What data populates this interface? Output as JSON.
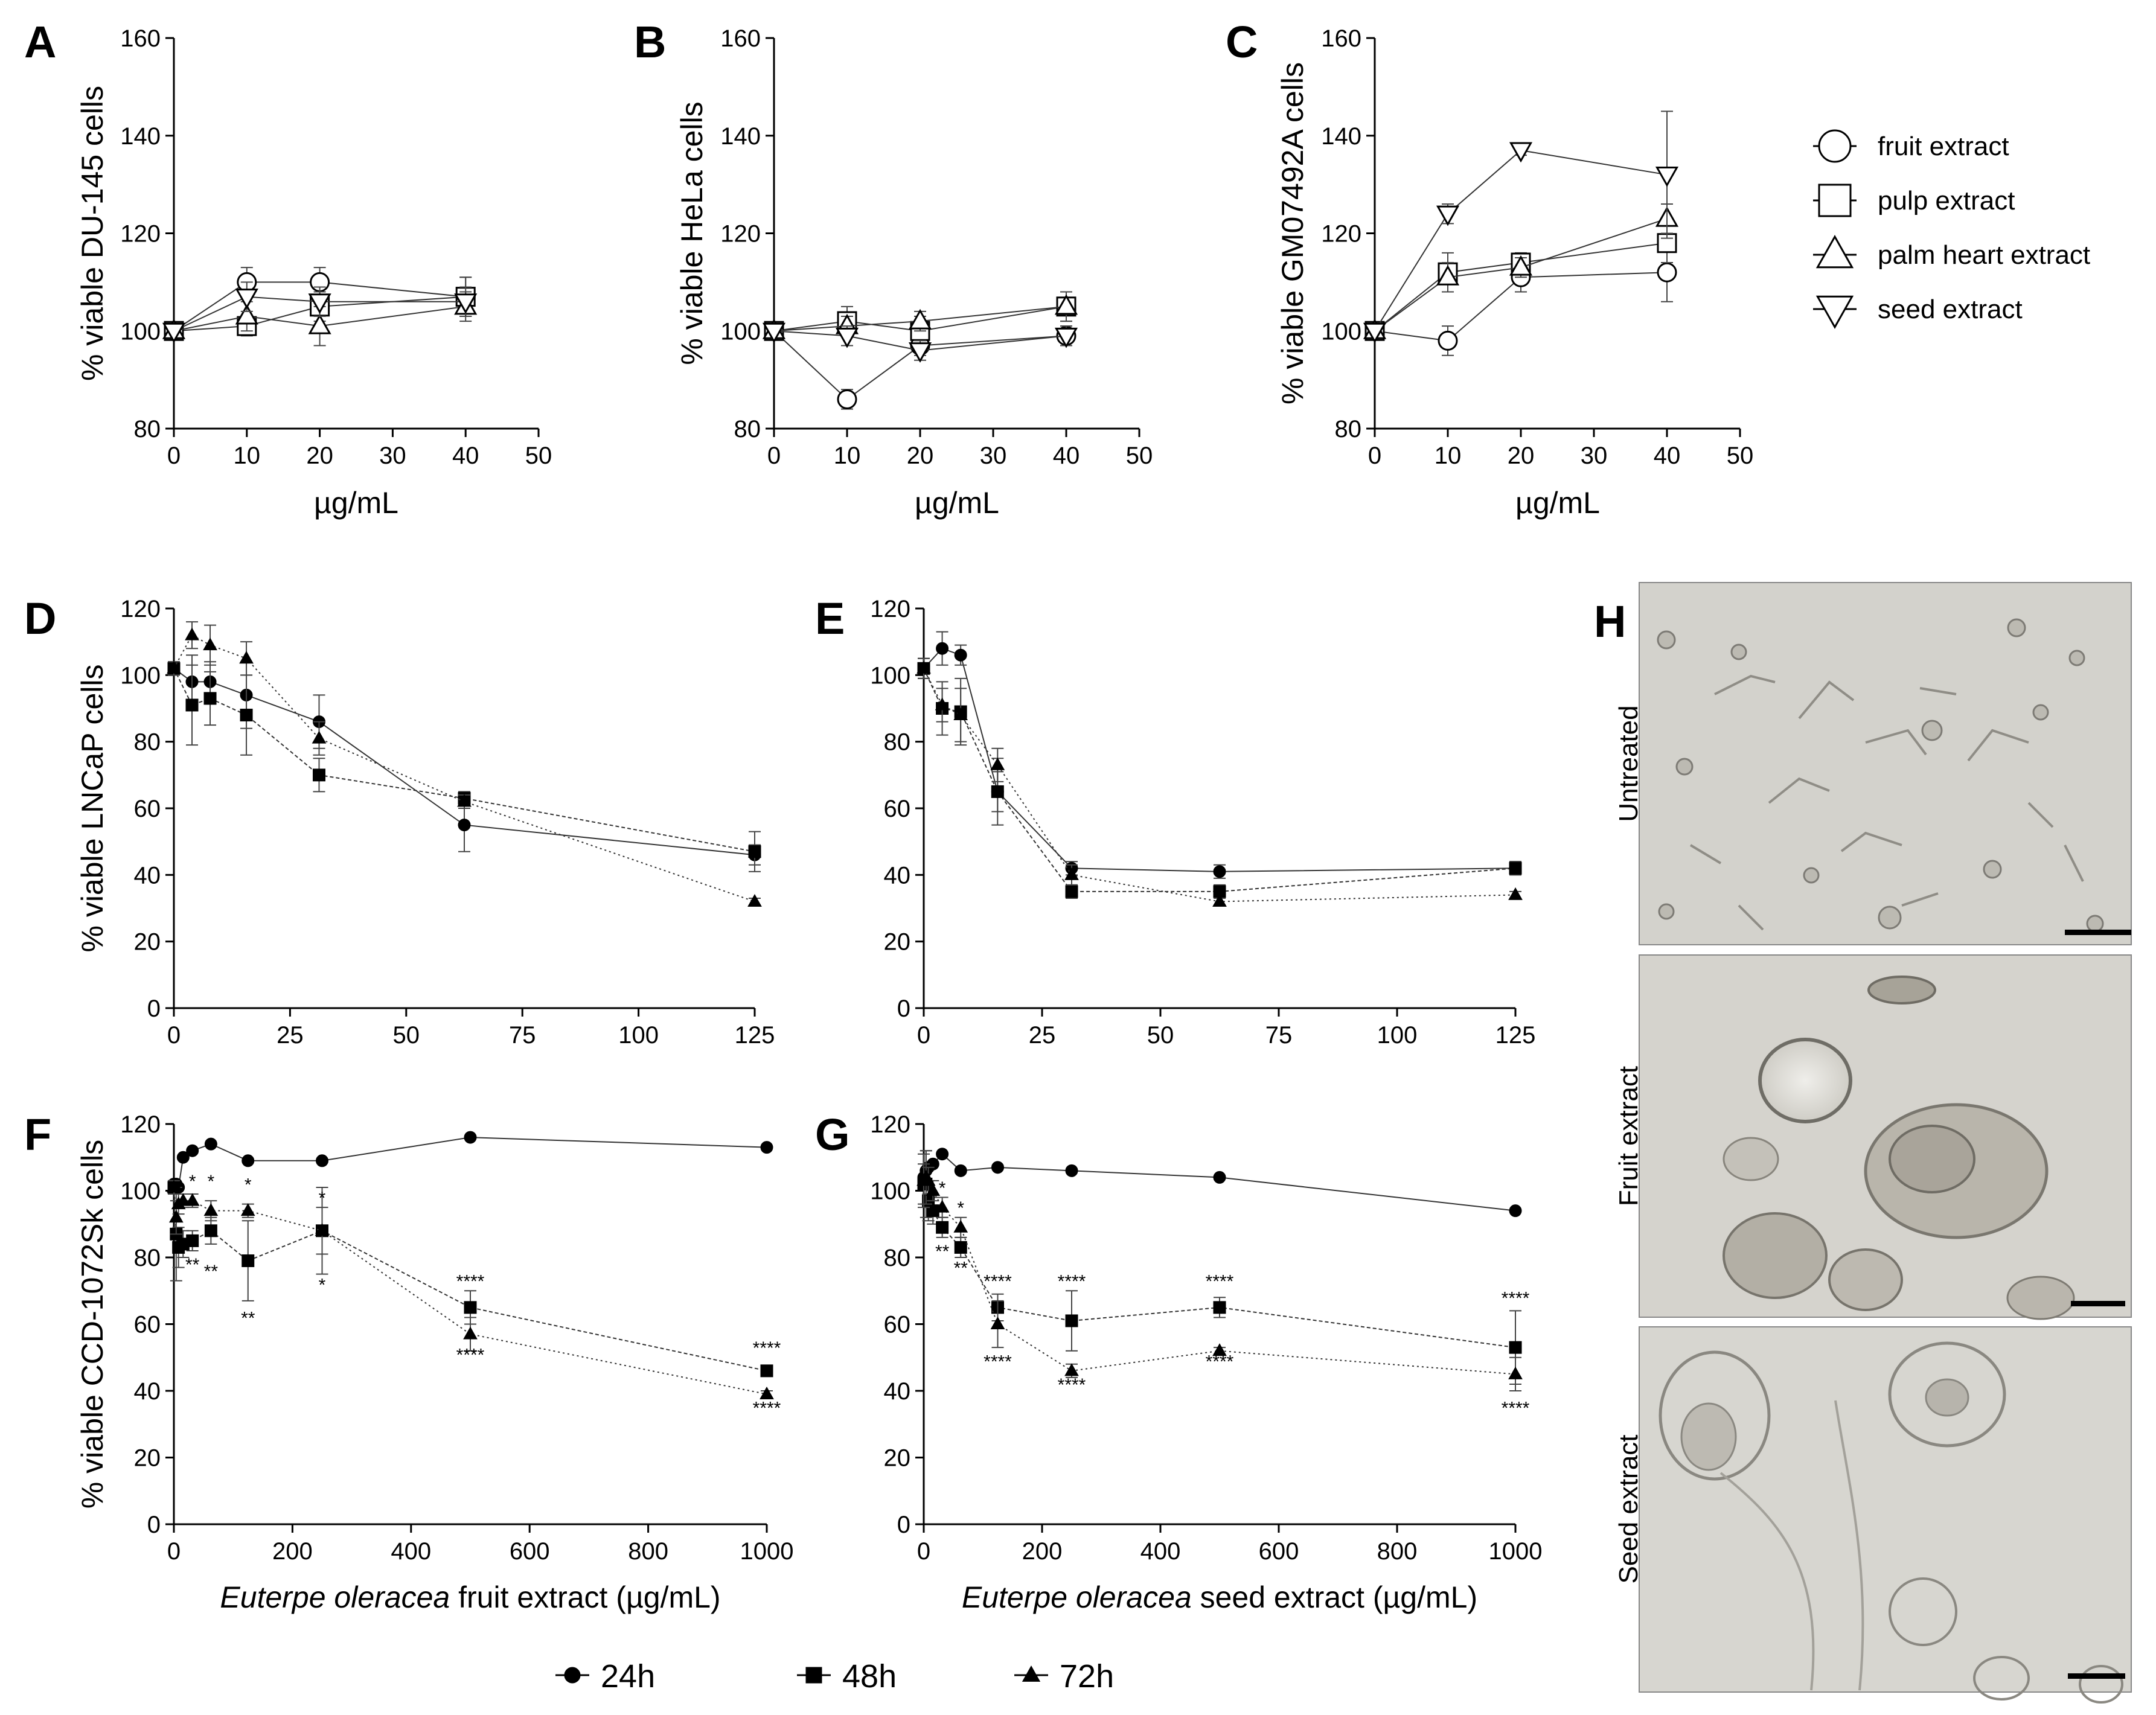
{
  "chart_data": [
    {
      "id": "A",
      "type": "line",
      "panel_label": "A",
      "ylabel": "% viable DU-145 cells",
      "xlabel": "µg/mL",
      "xlim": [
        0,
        50
      ],
      "ylim": [
        80,
        160
      ],
      "xticks": [
        0,
        10,
        20,
        30,
        40,
        50
      ],
      "yticks": [
        80,
        100,
        120,
        140,
        160
      ],
      "x": [
        0,
        10,
        20,
        40
      ],
      "series": [
        {
          "name": "fruit extract",
          "marker": "circle",
          "values": [
            100,
            110,
            110,
            107
          ],
          "err": [
            0,
            3,
            3,
            4
          ]
        },
        {
          "name": "pulp extract",
          "marker": "square",
          "values": [
            100,
            101,
            105,
            107
          ],
          "err": [
            0,
            2,
            3,
            4
          ]
        },
        {
          "name": "palm heart extract",
          "marker": "triangle-up",
          "values": [
            100,
            103,
            101,
            105
          ],
          "err": [
            0,
            3,
            4,
            3
          ]
        },
        {
          "name": "seed extract",
          "marker": "triangle-down",
          "values": [
            100,
            107,
            106,
            106
          ],
          "err": [
            0,
            3,
            3,
            3
          ]
        }
      ]
    },
    {
      "id": "B",
      "type": "line",
      "panel_label": "B",
      "ylabel": "% viable HeLa cells",
      "xlabel": "µg/mL",
      "xlim": [
        0,
        50
      ],
      "ylim": [
        80,
        160
      ],
      "xticks": [
        0,
        10,
        20,
        30,
        40,
        50
      ],
      "yticks": [
        80,
        100,
        120,
        140,
        160
      ],
      "x": [
        0,
        10,
        20,
        40
      ],
      "series": [
        {
          "name": "fruit extract",
          "marker": "circle",
          "values": [
            100,
            86,
            97,
            99
          ],
          "err": [
            0,
            2,
            2,
            2
          ]
        },
        {
          "name": "pulp extract",
          "marker": "square",
          "values": [
            100,
            102,
            100,
            105
          ],
          "err": [
            0,
            3,
            3,
            3
          ]
        },
        {
          "name": "palm heart extract",
          "marker": "triangle-up",
          "values": [
            100,
            101,
            102,
            105
          ],
          "err": [
            0,
            2,
            2,
            3
          ]
        },
        {
          "name": "seed extract",
          "marker": "triangle-down",
          "values": [
            100,
            99,
            96,
            99
          ],
          "err": [
            0,
            2,
            2,
            2
          ]
        }
      ]
    },
    {
      "id": "C",
      "type": "line",
      "panel_label": "C",
      "ylabel": "% viable GM07492A cells",
      "xlabel": "µg/mL",
      "xlim": [
        0,
        50
      ],
      "ylim": [
        80,
        160
      ],
      "xticks": [
        0,
        10,
        20,
        30,
        40,
        50
      ],
      "yticks": [
        80,
        100,
        120,
        140,
        160
      ],
      "x": [
        0,
        10,
        20,
        40
      ],
      "series": [
        {
          "name": "fruit extract",
          "marker": "circle",
          "values": [
            100,
            98,
            111,
            112
          ],
          "err": [
            0,
            3,
            3,
            6
          ]
        },
        {
          "name": "pulp extract",
          "marker": "square",
          "values": [
            100,
            112,
            114,
            118
          ],
          "err": [
            0,
            4,
            2,
            4
          ]
        },
        {
          "name": "palm heart extract",
          "marker": "triangle-up",
          "values": [
            100,
            111,
            113,
            123
          ],
          "err": [
            0,
            3,
            2,
            3
          ]
        },
        {
          "name": "seed extract",
          "marker": "triangle-down",
          "values": [
            100,
            124,
            137,
            132
          ],
          "err": [
            0,
            2,
            1,
            13
          ]
        }
      ]
    },
    {
      "id": "D",
      "type": "line",
      "panel_label": "D",
      "ylabel": "% viable LNCaP cells",
      "xlabel": "",
      "xlim": [
        0,
        125
      ],
      "ylim": [
        0,
        120
      ],
      "xticks": [
        0,
        25,
        50,
        75,
        100,
        125
      ],
      "yticks": [
        0,
        20,
        40,
        60,
        80,
        100,
        120
      ],
      "x": [
        0,
        3.9,
        7.8,
        15.6,
        31.25,
        62.5,
        125
      ],
      "series": [
        {
          "name": "24h",
          "marker": "circle",
          "values": [
            102,
            98,
            98,
            94,
            86,
            55,
            46
          ],
          "err": [
            2,
            8,
            6,
            10,
            8,
            8,
            3
          ]
        },
        {
          "name": "48h",
          "marker": "square",
          "values": [
            102,
            91,
            93,
            88,
            70,
            63,
            47
          ],
          "err": [
            2,
            12,
            8,
            12,
            5,
            2,
            6
          ]
        },
        {
          "name": "72h",
          "marker": "triangle",
          "values": [
            102,
            112,
            109,
            105,
            81,
            62,
            32
          ],
          "err": [
            2,
            4,
            6,
            5,
            5,
            2,
            1
          ]
        }
      ]
    },
    {
      "id": "E",
      "type": "line",
      "panel_label": "E",
      "ylabel": "",
      "xlabel": "",
      "xlim": [
        0,
        125
      ],
      "ylim": [
        0,
        120
      ],
      "xticks": [
        0,
        25,
        50,
        75,
        100,
        125
      ],
      "yticks": [
        0,
        20,
        40,
        60,
        80,
        100,
        120
      ],
      "x": [
        0,
        3.9,
        7.8,
        15.6,
        31.25,
        62.5,
        125
      ],
      "series": [
        {
          "name": "24h",
          "marker": "circle",
          "values": [
            102,
            108,
            106,
            65,
            42,
            41,
            42
          ],
          "err": [
            3,
            5,
            3,
            6,
            2,
            2,
            2
          ]
        },
        {
          "name": "48h",
          "marker": "square",
          "values": [
            102,
            90,
            89,
            65,
            35,
            35,
            42
          ],
          "err": [
            3,
            8,
            10,
            10,
            2,
            2,
            2
          ]
        },
        {
          "name": "72h",
          "marker": "triangle",
          "values": [
            102,
            91,
            88,
            73,
            40,
            32,
            34
          ],
          "err": [
            3,
            5,
            8,
            5,
            3,
            1,
            1
          ]
        }
      ]
    },
    {
      "id": "F",
      "type": "line",
      "panel_label": "F",
      "ylabel": "% viable CCD-1072Sk cells",
      "xlabel_italic": "Euterpe oleracea",
      "xlabel_rest": " fruit extract (µg/mL)",
      "xlim": [
        0,
        1000
      ],
      "ylim": [
        0,
        120
      ],
      "xticks": [
        0,
        200,
        400,
        600,
        800,
        1000
      ],
      "yticks": [
        0,
        20,
        40,
        60,
        80,
        100,
        120
      ],
      "x": [
        0,
        3.9,
        7.8,
        15.6,
        31.25,
        62.5,
        125,
        250,
        500,
        1000
      ],
      "series": [
        {
          "name": "24h",
          "marker": "circle",
          "values": [
            102,
            102,
            101,
            110,
            112,
            114,
            109,
            109,
            116,
            113
          ],
          "err": [
            0,
            0,
            0,
            0,
            0,
            0,
            0,
            0,
            0,
            0
          ]
        },
        {
          "name": "48h",
          "marker": "square",
          "values": [
            101,
            87,
            83,
            84,
            85,
            88,
            79,
            88,
            65,
            46
          ],
          "err": [
            2,
            14,
            6,
            4,
            3,
            4,
            12,
            13,
            5,
            1
          ]
        },
        {
          "name": "72h",
          "marker": "triangle",
          "values": [
            101,
            92,
            96,
            97,
            97,
            94,
            94,
            88,
            57,
            39
          ],
          "err": [
            2,
            5,
            3,
            2,
            2,
            3,
            2,
            7,
            5,
            1
          ]
        }
      ],
      "annotations": [
        {
          "x": 31.25,
          "y": 101,
          "text": "*"
        },
        {
          "x": 62.5,
          "y": 101,
          "text": "*"
        },
        {
          "x": 125,
          "y": 100,
          "text": "*"
        },
        {
          "x": 250,
          "y": 96,
          "text": "*"
        },
        {
          "x": 31.25,
          "y": 76,
          "text": "**"
        },
        {
          "x": 62.5,
          "y": 74,
          "text": "**"
        },
        {
          "x": 125,
          "y": 60,
          "text": "**"
        },
        {
          "x": 250,
          "y": 70,
          "text": "*"
        },
        {
          "x": 500,
          "y": 71,
          "text": "****"
        },
        {
          "x": 500,
          "y": 49,
          "text": "****"
        },
        {
          "x": 1000,
          "y": 51,
          "text": "****"
        },
        {
          "x": 1000,
          "y": 33,
          "text": "****"
        }
      ]
    },
    {
      "id": "G",
      "type": "line",
      "panel_label": "G",
      "ylabel": "",
      "xlabel_italic": "Euterpe oleracea",
      "xlabel_rest": " seed extract (µg/mL)",
      "xlim": [
        0,
        1000
      ],
      "ylim": [
        0,
        120
      ],
      "xticks": [
        0,
        200,
        400,
        600,
        800,
        1000
      ],
      "yticks": [
        0,
        20,
        40,
        60,
        80,
        100,
        120
      ],
      "x": [
        0,
        3.9,
        7.8,
        15.6,
        31.25,
        62.5,
        125,
        250,
        500,
        1000
      ],
      "series": [
        {
          "name": "24h",
          "marker": "circle",
          "values": [
            104,
            106,
            107,
            108,
            111,
            106,
            107,
            106,
            104,
            94
          ],
          "err": [
            0,
            0,
            0,
            0,
            0,
            0,
            0,
            0,
            0,
            0
          ]
        },
        {
          "name": "48h",
          "marker": "square",
          "values": [
            102,
            102,
            97,
            94,
            89,
            83,
            65,
            61,
            65,
            53
          ],
          "err": [
            6,
            10,
            6,
            4,
            3,
            3,
            4,
            9,
            3,
            11
          ]
        },
        {
          "name": "72h",
          "marker": "triangle",
          "values": [
            103,
            104,
            103,
            100,
            95,
            89,
            60,
            46,
            52,
            45
          ],
          "err": [
            8,
            8,
            4,
            3,
            3,
            3,
            7,
            2,
            1,
            5
          ]
        }
      ],
      "annotations": [
        {
          "x": 31.25,
          "y": 99,
          "text": "*"
        },
        {
          "x": 62.5,
          "y": 93,
          "text": "*"
        },
        {
          "x": 31.25,
          "y": 80,
          "text": "**"
        },
        {
          "x": 62.5,
          "y": 75,
          "text": "**"
        },
        {
          "x": 125,
          "y": 71,
          "text": "****"
        },
        {
          "x": 250,
          "y": 71,
          "text": "****"
        },
        {
          "x": 500,
          "y": 71,
          "text": "****"
        },
        {
          "x": 1000,
          "y": 66,
          "text": "****"
        },
        {
          "x": 125,
          "y": 47,
          "text": "****"
        },
        {
          "x": 250,
          "y": 40,
          "text": "****"
        },
        {
          "x": 500,
          "y": 47,
          "text": "****"
        },
        {
          "x": 1000,
          "y": 33,
          "text": "****"
        }
      ]
    }
  ],
  "legend_abc": [
    "fruit extract",
    "pulp extract",
    "palm heart extract",
    "seed extract"
  ],
  "legend_time": [
    "24h",
    "48h",
    "72h"
  ],
  "panel_h": {
    "label": "H",
    "images": [
      "Untreated",
      "Fruit extract",
      "Seed extract"
    ]
  }
}
